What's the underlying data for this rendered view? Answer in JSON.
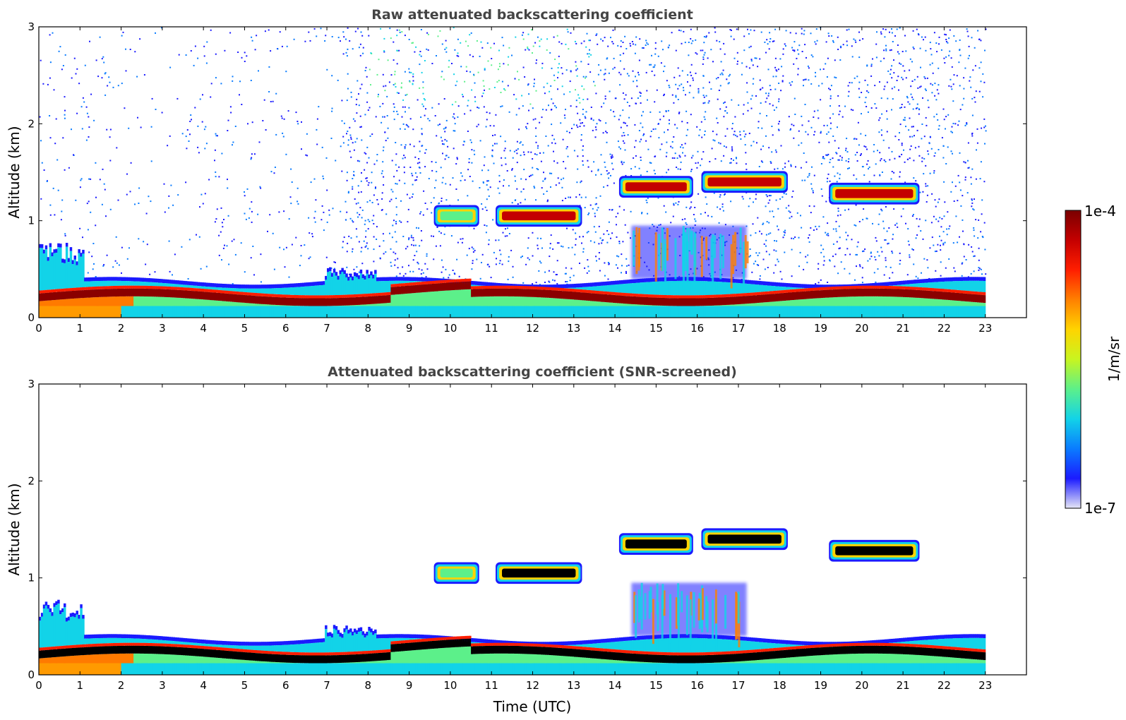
{
  "chart_data": [
    {
      "type": "heatmap",
      "title": "Raw attenuated backscattering coefficient",
      "xlabel": "",
      "ylabel": "Altitude (km)",
      "xlim": [
        0,
        24
      ],
      "ylim": [
        0,
        3
      ],
      "x_ticks": [
        "0",
        "1",
        "2",
        "3",
        "4",
        "5",
        "6",
        "7",
        "8",
        "9",
        "10",
        "11",
        "12",
        "13",
        "14",
        "15",
        "16",
        "17",
        "18",
        "19",
        "20",
        "21",
        "22",
        "23"
      ],
      "y_ticks": [
        "0",
        "1",
        "2",
        "3"
      ],
      "data_end_time": 23,
      "noise_background": true,
      "features": [
        {
          "name": "boundary layer aerosol",
          "t_start": 0,
          "t_end": 23,
          "alt_top_km": 0.35,
          "alt_core_km": 0.22,
          "level": "high"
        },
        {
          "name": "cloud",
          "t_start": 9.6,
          "t_end": 10.7,
          "alt_km": 1.05,
          "level": "medium"
        },
        {
          "name": "cloud",
          "t_start": 11.1,
          "t_end": 13.2,
          "alt_km": 1.05,
          "level": "high"
        },
        {
          "name": "cloud",
          "t_start": 14.1,
          "t_end": 15.9,
          "alt_km": 1.35,
          "level": "high"
        },
        {
          "name": "cloud",
          "t_start": 16.1,
          "t_end": 18.2,
          "alt_km": 1.4,
          "level": "high"
        },
        {
          "name": "cloud",
          "t_start": 19.2,
          "t_end": 21.4,
          "alt_km": 1.28,
          "level": "high"
        },
        {
          "name": "low cloud",
          "t_start": 14.4,
          "t_end": 17.2,
          "alt_km": 0.75,
          "level": "medium"
        }
      ]
    },
    {
      "type": "heatmap",
      "title": "Attenuated backscattering coefficient (SNR-screened)",
      "xlabel": "Time (UTC)",
      "ylabel": "Altitude (km)",
      "xlim": [
        0,
        24
      ],
      "ylim": [
        0,
        3
      ],
      "x_ticks": [
        "0",
        "1",
        "2",
        "3",
        "4",
        "5",
        "6",
        "7",
        "8",
        "9",
        "10",
        "11",
        "12",
        "13",
        "14",
        "15",
        "16",
        "17",
        "18",
        "19",
        "20",
        "21",
        "22",
        "23"
      ],
      "y_ticks": [
        "0",
        "1",
        "2",
        "3"
      ],
      "data_end_time": 23,
      "noise_background": false,
      "saturated_color": "#000000",
      "features": [
        {
          "name": "boundary layer aerosol",
          "t_start": 0,
          "t_end": 23,
          "alt_top_km": 0.35,
          "alt_core_km": 0.22,
          "level": "saturated"
        },
        {
          "name": "cloud",
          "t_start": 9.6,
          "t_end": 10.7,
          "alt_km": 1.05,
          "level": "medium"
        },
        {
          "name": "cloud",
          "t_start": 11.1,
          "t_end": 13.2,
          "alt_km": 1.05,
          "level": "saturated"
        },
        {
          "name": "cloud",
          "t_start": 14.1,
          "t_end": 15.9,
          "alt_km": 1.35,
          "level": "saturated"
        },
        {
          "name": "cloud",
          "t_start": 16.1,
          "t_end": 18.2,
          "alt_km": 1.4,
          "level": "saturated"
        },
        {
          "name": "cloud",
          "t_start": 19.2,
          "t_end": 21.4,
          "alt_km": 1.28,
          "level": "saturated"
        },
        {
          "name": "low cloud",
          "t_start": 14.4,
          "t_end": 17.2,
          "alt_km": 0.75,
          "level": "medium"
        }
      ]
    }
  ],
  "colorbar": {
    "label": "1/m/sr",
    "max_label": "1e-4",
    "min_label": "1e-7",
    "scale": "log",
    "colormap": [
      "#e6e6f5",
      "#1b1bff",
      "#0a7cff",
      "#12d3e8",
      "#5cf08a",
      "#c8f520",
      "#ffd400",
      "#ff8000",
      "#ff1e00",
      "#c40000",
      "#7a0000"
    ]
  }
}
